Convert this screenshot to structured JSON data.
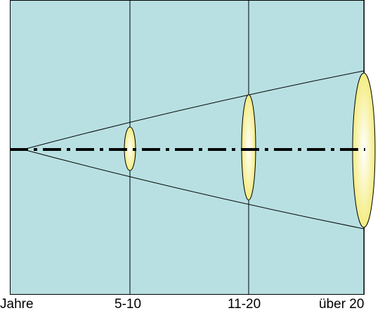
{
  "colors": {
    "background": "#b8e0e2",
    "frame": "#000000",
    "ellipse_center": "#ffffff",
    "ellipse_edge": "#f4ec80"
  },
  "x_labels": [
    "Jahre",
    "5-10",
    "11-20",
    "über 20"
  ]
}
